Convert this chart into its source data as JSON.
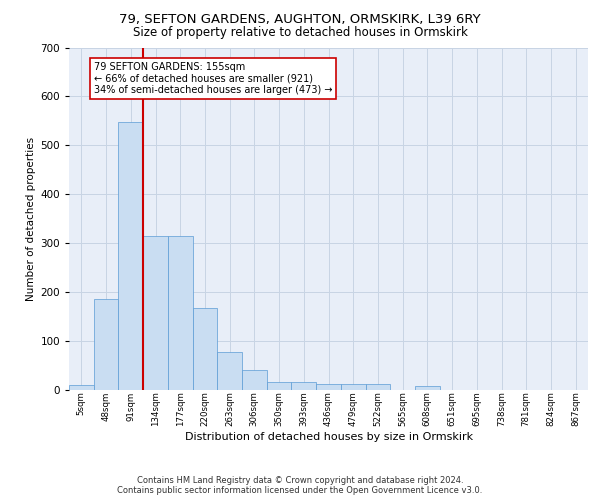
{
  "title1": "79, SEFTON GARDENS, AUGHTON, ORMSKIRK, L39 6RY",
  "title2": "Size of property relative to detached houses in Ormskirk",
  "xlabel": "Distribution of detached houses by size in Ormskirk",
  "ylabel": "Number of detached properties",
  "bar_labels": [
    "5sqm",
    "48sqm",
    "91sqm",
    "134sqm",
    "177sqm",
    "220sqm",
    "263sqm",
    "306sqm",
    "350sqm",
    "393sqm",
    "436sqm",
    "479sqm",
    "522sqm",
    "565sqm",
    "608sqm",
    "651sqm",
    "695sqm",
    "738sqm",
    "781sqm",
    "824sqm",
    "867sqm"
  ],
  "bar_values": [
    10,
    185,
    548,
    315,
    315,
    168,
    77,
    40,
    17,
    17,
    12,
    12,
    12,
    0,
    8,
    0,
    0,
    0,
    0,
    0,
    0
  ],
  "bar_color": "#c9ddf2",
  "bar_edge_color": "#5b9bd5",
  "vline_color": "#cc0000",
  "annotation_text": "79 SEFTON GARDENS: 155sqm\n← 66% of detached houses are smaller (921)\n34% of semi-detached houses are larger (473) →",
  "annotation_edge_color": "#cc0000",
  "ylim_max": 700,
  "yticks": [
    0,
    100,
    200,
    300,
    400,
    500,
    600,
    700
  ],
  "grid_color": "#c8d4e4",
  "bg_color": "#e8eef8",
  "footer": "Contains HM Land Registry data © Crown copyright and database right 2024.\nContains public sector information licensed under the Open Government Licence v3.0."
}
